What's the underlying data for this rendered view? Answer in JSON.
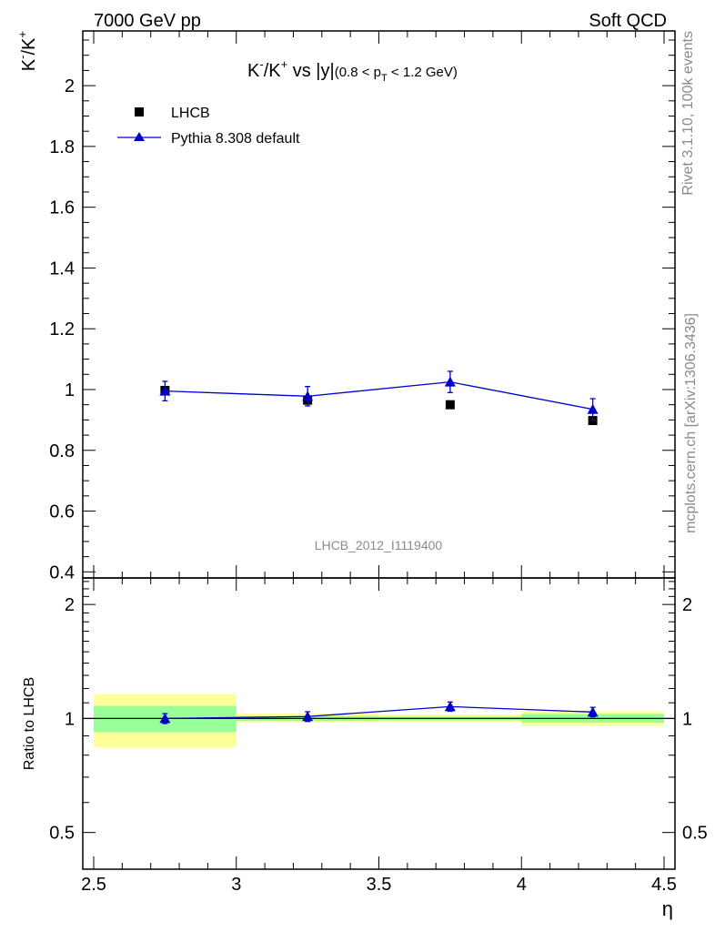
{
  "header": {
    "left": "7000 GeV pp",
    "right": "Soft QCD"
  },
  "side_labels": {
    "rivet": "Rivet 3.1.10,  100k events",
    "mcplots": "mcplots.cern.ch [arXiv:1306.3436]"
  },
  "chart_data": [
    {
      "type": "scatter",
      "title": {
        "main_a": "K",
        "sup_a": "-",
        "main_b": "/K",
        "sup_b": "+",
        "main_c": " vs |y|",
        "sub_a": "(0.8 < p",
        "sub_T": "T",
        "sub_b": " < 1.2 GeV)"
      },
      "ylabel": {
        "a": "K",
        "sup_a": "-",
        "b": "/K",
        "sup_b": "+"
      },
      "xlim": [
        2.5,
        4.5
      ],
      "ylim": [
        0.38,
        2.18
      ],
      "yticks": [
        0.4,
        0.6,
        0.8,
        1,
        1.2,
        1.4,
        1.6,
        1.8,
        2
      ],
      "ytick_labels": [
        "0.4",
        "0.6",
        "0.8",
        "1",
        "1.2",
        "1.4",
        "1.6",
        "1.8",
        "2"
      ],
      "watermark": "LHCB_2012_I1119400",
      "legend_position": "top-left",
      "series": [
        {
          "name": "LHCB",
          "marker": "square",
          "color": "#000000",
          "x": [
            2.75,
            3.25,
            3.75,
            4.25
          ],
          "y": [
            0.997,
            0.965,
            0.95,
            0.898
          ],
          "yerr": [
            0.012,
            0.01,
            0.008,
            0.008
          ]
        },
        {
          "name": "Pythia 8.308 default",
          "marker": "triangle",
          "color": "#0000cc",
          "x": [
            2.75,
            3.25,
            3.75,
            4.25
          ],
          "y": [
            0.995,
            0.978,
            1.025,
            0.935
          ],
          "yerr": [
            0.032,
            0.032,
            0.035,
            0.035
          ]
        }
      ]
    },
    {
      "type": "scatter",
      "ylabel": "Ratio to LHCB",
      "xlabel": "η",
      "xlim": [
        2.5,
        4.5
      ],
      "ylim": [
        0.4,
        2.35
      ],
      "y_scale": "log",
      "yticks": [
        0.5,
        1,
        2
      ],
      "ytick_labels": [
        "0.5",
        "1",
        "2"
      ],
      "xticks": [
        2.5,
        3,
        3.5,
        4,
        4.5
      ],
      "xtick_labels": [
        "2.5",
        "3",
        "3.5",
        "4",
        "4.5"
      ],
      "bands": [
        {
          "x": [
            2.5,
            3.0
          ],
          "inner": [
            0.92,
            1.08
          ],
          "outer": [
            0.84,
            1.16
          ]
        },
        {
          "x": [
            3.0,
            3.5
          ],
          "inner": [
            0.985,
            1.015
          ],
          "outer": [
            0.975,
            1.03
          ]
        },
        {
          "x": [
            3.5,
            4.0
          ],
          "inner": [
            0.99,
            1.012
          ],
          "outer": [
            0.978,
            1.025
          ]
        },
        {
          "x": [
            4.0,
            4.5
          ],
          "inner": [
            0.975,
            1.028
          ],
          "outer": [
            0.955,
            1.045
          ]
        }
      ],
      "band_colors": {
        "inner": "#99ff99",
        "outer": "#ffff99"
      },
      "series": [
        {
          "name": "Pythia 8.308 default",
          "color": "#0000cc",
          "x": [
            2.75,
            3.25,
            3.75,
            4.25
          ],
          "y": [
            1.0,
            1.012,
            1.075,
            1.04
          ],
          "yerr": [
            0.03,
            0.03,
            0.03,
            0.03
          ]
        }
      ]
    }
  ]
}
